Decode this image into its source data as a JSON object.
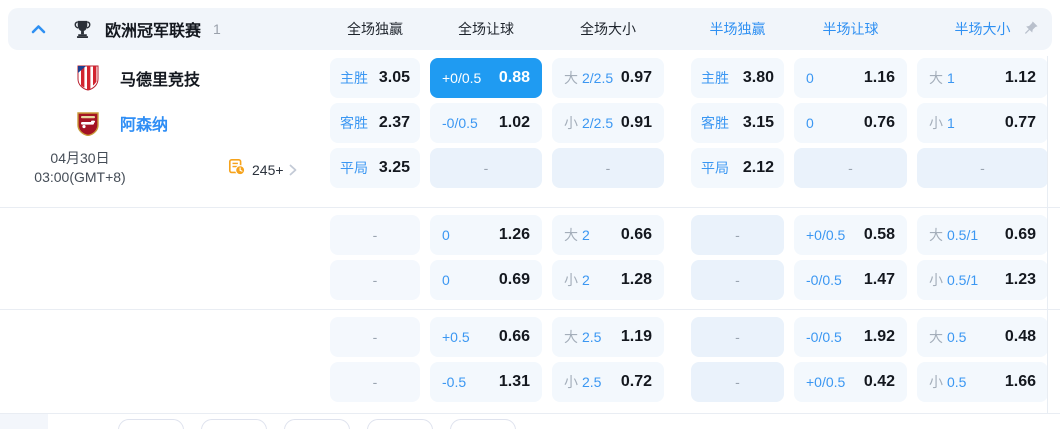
{
  "header": {
    "league": "欧洲冠军联赛",
    "count": "1",
    "columns": [
      "全场独赢",
      "全场让球",
      "全场大小",
      "半场独赢",
      "半场让球",
      "半场大小"
    ]
  },
  "match": {
    "home_team": "马德里竞技",
    "away_team": "阿森纳",
    "date": "04月30日",
    "time": "03:00(GMT+8)",
    "more_markets": "245+"
  },
  "colors": {
    "accent": "#1f9bf2",
    "label_blue": "#3b97f2",
    "cell_bg": "#f3f8fd",
    "dash_bg": "#eaf2fb",
    "header_bg": "#f1f5fa"
  },
  "rows": [
    {
      "cells": [
        {
          "label": "主胜",
          "value": "3.05"
        },
        {
          "label": "+0/0.5",
          "value": "0.88",
          "highlight": true
        },
        {
          "pre": "大",
          "label": "2/2.5",
          "value": "0.97"
        },
        {
          "label": "主胜",
          "value": "3.80"
        },
        {
          "label": "0",
          "value": "1.16"
        },
        {
          "pre": "大",
          "label": "1",
          "value": "1.12"
        }
      ]
    },
    {
      "cells": [
        {
          "label": "客胜",
          "value": "2.37"
        },
        {
          "label": "-0/0.5",
          "value": "1.02"
        },
        {
          "pre": "小",
          "label": "2/2.5",
          "value": "0.91"
        },
        {
          "label": "客胜",
          "value": "3.15"
        },
        {
          "label": "0",
          "value": "0.76"
        },
        {
          "pre": "小",
          "label": "1",
          "value": "0.77"
        }
      ]
    },
    {
      "cells": [
        {
          "label": "平局",
          "value": "3.25"
        },
        {
          "dash": true
        },
        {
          "dash": true
        },
        {
          "label": "平局",
          "value": "2.12"
        },
        {
          "dash": true
        },
        {
          "dash": true
        }
      ]
    },
    {
      "cells": [
        {
          "dash": true
        },
        {
          "label": "0",
          "value": "1.26"
        },
        {
          "pre": "大",
          "label": "2",
          "value": "0.66"
        },
        {
          "dash": true
        },
        {
          "label": "+0/0.5",
          "value": "0.58"
        },
        {
          "pre": "大",
          "label": "0.5/1",
          "value": "0.69"
        }
      ]
    },
    {
      "cells": [
        {
          "dash": true
        },
        {
          "label": "0",
          "value": "0.69"
        },
        {
          "pre": "小",
          "label": "2",
          "value": "1.28"
        },
        {
          "dash": true
        },
        {
          "label": "-0/0.5",
          "value": "1.47"
        },
        {
          "pre": "小",
          "label": "0.5/1",
          "value": "1.23"
        }
      ]
    },
    {
      "cells": [
        {
          "dash": true
        },
        {
          "label": "+0.5",
          "value": "0.66"
        },
        {
          "pre": "大",
          "label": "2.5",
          "value": "1.19"
        },
        {
          "dash": true
        },
        {
          "label": "-0/0.5",
          "value": "1.92"
        },
        {
          "pre": "大",
          "label": "0.5",
          "value": "0.48"
        }
      ]
    },
    {
      "cells": [
        {
          "dash": true
        },
        {
          "label": "-0.5",
          "value": "1.31"
        },
        {
          "pre": "小",
          "label": "2.5",
          "value": "0.72"
        },
        {
          "dash": true
        },
        {
          "label": "+0/0.5",
          "value": "0.42"
        },
        {
          "pre": "小",
          "label": "0.5",
          "value": "1.66"
        }
      ]
    }
  ]
}
